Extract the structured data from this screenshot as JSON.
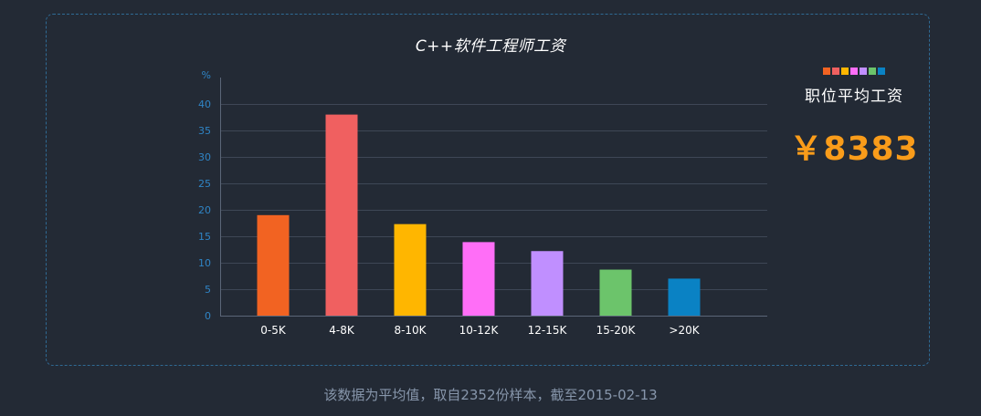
{
  "chart_data": {
    "type": "bar",
    "title": "C++软件工程师工资",
    "y_unit": "%",
    "ylim": [
      0,
      45
    ],
    "yticks": [
      0,
      5,
      10,
      15,
      20,
      25,
      30,
      35,
      40
    ],
    "categories": [
      "0-5K",
      "4-8K",
      "8-10K",
      "10-12K",
      "12-15K",
      "15-20K",
      ">20K"
    ],
    "values": [
      19,
      38,
      17.3,
      13.9,
      12.2,
      8.7,
      7
    ],
    "colors": [
      "#f26322",
      "#f06060",
      "#ffb600",
      "#ff6ef7",
      "#c08fff",
      "#6cc46b",
      "#0a82c4"
    ],
    "grid": true,
    "legend": "none"
  },
  "summary": {
    "label": "职位平均工资",
    "value": "￥8383",
    "swatch_colors": [
      "#f26322",
      "#f06060",
      "#ffb600",
      "#ff6ef7",
      "#c08fff",
      "#6cc46b",
      "#0a82c4"
    ]
  },
  "footnote": "该数据为平均值，取自2352份样本，截至2015-02-13"
}
